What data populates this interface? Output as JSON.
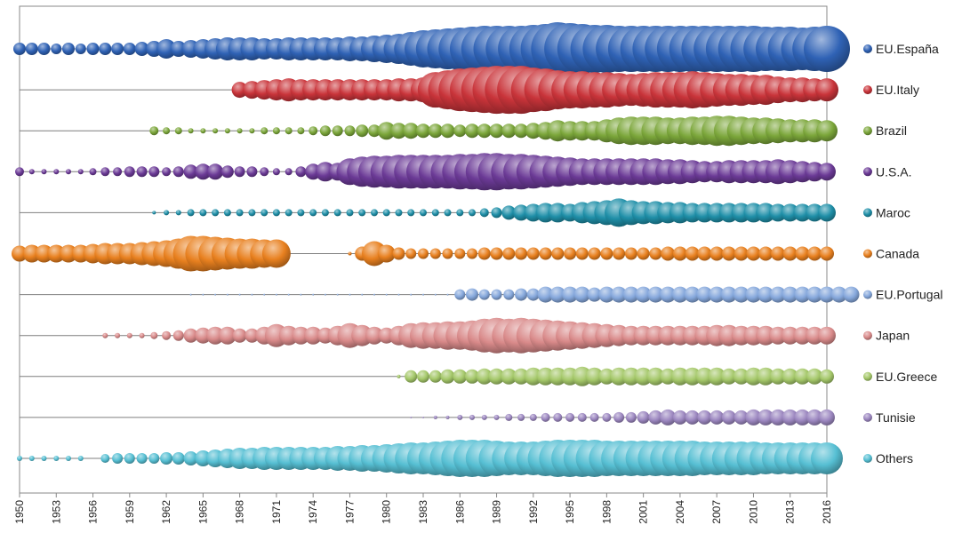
{
  "chart_data": {
    "type": "bubble",
    "title": "",
    "xlabel": "",
    "ylabel": "",
    "xlim": [
      1950,
      2016
    ],
    "x_ticks": [
      1950,
      1953,
      1956,
      1959,
      1962,
      1965,
      1968,
      1971,
      1974,
      1977,
      1980,
      1983,
      1986,
      1989,
      1992,
      1995,
      1998,
      2001,
      2004,
      2007,
      2010,
      2013,
      2016
    ],
    "grid": false,
    "legend_position": "right",
    "series": [
      {
        "name": "EU.España",
        "color": "#2f62b5",
        "start": 1950,
        "sizes": [
          7,
          7,
          7,
          6,
          7,
          6,
          7,
          7,
          7,
          7,
          8,
          9,
          11,
          9,
          10,
          11,
          12,
          13,
          13,
          13,
          12,
          12,
          13,
          13,
          13,
          13,
          13,
          14,
          14,
          15,
          16,
          17,
          19,
          21,
          22,
          23,
          24,
          25,
          26,
          26,
          26,
          26,
          27,
          28,
          30,
          29,
          28,
          27,
          27,
          26,
          26,
          26,
          26,
          26,
          26,
          26,
          26,
          26,
          26,
          26,
          26,
          25,
          25,
          25,
          24,
          25,
          26
        ]
      },
      {
        "name": "EU.Italy",
        "color": "#c9343a",
        "start": 1968,
        "sizes": [
          9,
          10,
          11,
          12,
          13,
          12,
          12,
          12,
          12,
          12,
          12,
          12,
          12,
          13,
          13,
          14,
          20,
          22,
          24,
          25,
          26,
          27,
          27,
          27,
          25,
          24,
          22,
          21,
          21,
          20,
          20,
          19,
          18,
          19,
          20,
          20,
          20,
          21,
          20,
          19,
          18,
          18,
          17,
          17,
          15,
          14,
          14,
          13,
          13
        ]
      },
      {
        "name": "Brazil",
        "color": "#7ba63a",
        "start": 1961,
        "sizes": [
          5,
          4,
          4,
          3,
          3,
          3,
          3,
          3,
          3,
          4,
          4,
          4,
          4,
          5,
          6,
          6,
          6,
          7,
          7,
          10,
          9,
          9,
          8,
          8,
          8,
          7,
          8,
          8,
          8,
          8,
          8,
          9,
          10,
          12,
          11,
          11,
          11,
          13,
          15,
          16,
          16,
          16,
          15,
          15,
          16,
          16,
          17,
          17,
          16,
          15,
          15,
          14,
          13,
          13,
          13,
          12
        ]
      },
      {
        "name": "U.S.A.",
        "color": "#6b3a96",
        "start": 1950,
        "sizes": [
          5,
          3,
          3,
          3,
          3,
          3,
          4,
          5,
          5,
          6,
          6,
          6,
          5,
          6,
          8,
          9,
          9,
          7,
          6,
          6,
          5,
          4,
          4,
          6,
          9,
          11,
          10,
          15,
          17,
          18,
          18,
          19,
          19,
          19,
          19,
          19,
          20,
          20,
          21,
          21,
          20,
          20,
          19,
          18,
          17,
          16,
          15,
          15,
          15,
          15,
          15,
          15,
          15,
          14,
          14,
          13,
          12,
          12,
          13,
          13,
          13,
          13,
          14,
          13,
          12,
          11,
          10
        ]
      },
      {
        "name": "Maroc",
        "color": "#1f8fa8",
        "start": 1961,
        "sizes": [
          2,
          3,
          3,
          4,
          4,
          4,
          4,
          4,
          4,
          4,
          4,
          4,
          4,
          4,
          4,
          4,
          4,
          4,
          4,
          4,
          4,
          4,
          4,
          4,
          4,
          4,
          4,
          5,
          6,
          8,
          9,
          10,
          11,
          11,
          10,
          12,
          13,
          14,
          16,
          14,
          13,
          13,
          12,
          12,
          11,
          11,
          11,
          11,
          11,
          11,
          11,
          10,
          10,
          10,
          10,
          10
        ]
      },
      {
        "name": "Canada",
        "color": "#e8801f",
        "start": 1950,
        "sizes": [
          9,
          10,
          10,
          10,
          10,
          10,
          11,
          12,
          12,
          12,
          13,
          14,
          15,
          17,
          20,
          20,
          19,
          18,
          17,
          17,
          16,
          16,
          0,
          0,
          0,
          0,
          0,
          2,
          8,
          14,
          10,
          7,
          6,
          6,
          6,
          6,
          6,
          6,
          7,
          7,
          7,
          7,
          7,
          7,
          7,
          7,
          7,
          7,
          7,
          7,
          7,
          7,
          7,
          8,
          8,
          8,
          8,
          8,
          8,
          8,
          8,
          8,
          8,
          8,
          8,
          8,
          8
        ]
      },
      {
        "name": "EU.Portugal",
        "color": "#86a8dc",
        "start": 1964,
        "sizes": [
          1,
          1,
          1,
          1,
          1,
          1,
          1,
          1,
          1,
          1,
          1,
          1,
          1,
          1,
          1,
          1,
          1,
          1,
          1,
          1,
          1,
          1,
          6,
          7,
          6,
          6,
          6,
          7,
          7,
          9,
          9,
          9,
          9,
          8,
          9,
          9,
          9,
          9,
          9,
          9,
          9,
          9,
          9,
          9,
          9,
          9,
          9,
          9,
          9,
          9,
          9,
          9,
          9,
          9,
          9
        ]
      },
      {
        "name": "Japan",
        "color": "#d98a8a",
        "start": 1957,
        "sizes": [
          3,
          3,
          3,
          3,
          4,
          5,
          6,
          8,
          9,
          10,
          10,
          8,
          8,
          10,
          13,
          11,
          10,
          10,
          9,
          11,
          14,
          12,
          10,
          9,
          11,
          14,
          15,
          15,
          16,
          16,
          17,
          19,
          20,
          19,
          20,
          19,
          18,
          17,
          16,
          15,
          14,
          13,
          12,
          11,
          11,
          11,
          11,
          11,
          11,
          11,
          12,
          12,
          11,
          11,
          11,
          10,
          10,
          10,
          10,
          10
        ]
      },
      {
        "name": "EU.Greece",
        "color": "#a5c86a",
        "start": 1981,
        "sizes": [
          2,
          7,
          7,
          7,
          8,
          8,
          8,
          9,
          9,
          9,
          9,
          10,
          10,
          10,
          10,
          11,
          10,
          9,
          10,
          10,
          10,
          10,
          9,
          10,
          10,
          10,
          10,
          9,
          9,
          10,
          10,
          9,
          9,
          9,
          9,
          8
        ]
      },
      {
        "name": "Tunisie",
        "color": "#9c87c0",
        "start": 1982,
        "sizes": [
          1,
          1,
          2,
          2,
          3,
          3,
          3,
          3,
          4,
          4,
          4,
          5,
          5,
          5,
          5,
          5,
          5,
          6,
          6,
          7,
          8,
          9,
          8,
          8,
          8,
          8,
          8,
          8,
          9,
          9,
          9,
          9,
          9,
          9,
          9
        ]
      },
      {
        "name": "Others",
        "color": "#56bfd3",
        "start": 1950,
        "sizes": [
          3,
          3,
          3,
          3,
          3,
          3,
          0,
          5,
          6,
          6,
          6,
          6,
          7,
          7,
          8,
          9,
          10,
          11,
          12,
          12,
          13,
          13,
          13,
          13,
          13,
          13,
          14,
          14,
          15,
          15,
          16,
          17,
          18,
          18,
          19,
          20,
          21,
          21,
          21,
          20,
          19,
          19,
          19,
          20,
          21,
          21,
          21,
          21,
          20,
          20,
          20,
          20,
          20,
          20,
          20,
          20,
          19,
          19,
          19,
          19,
          19,
          18,
          18,
          18,
          18,
          18,
          18
        ]
      }
    ]
  }
}
